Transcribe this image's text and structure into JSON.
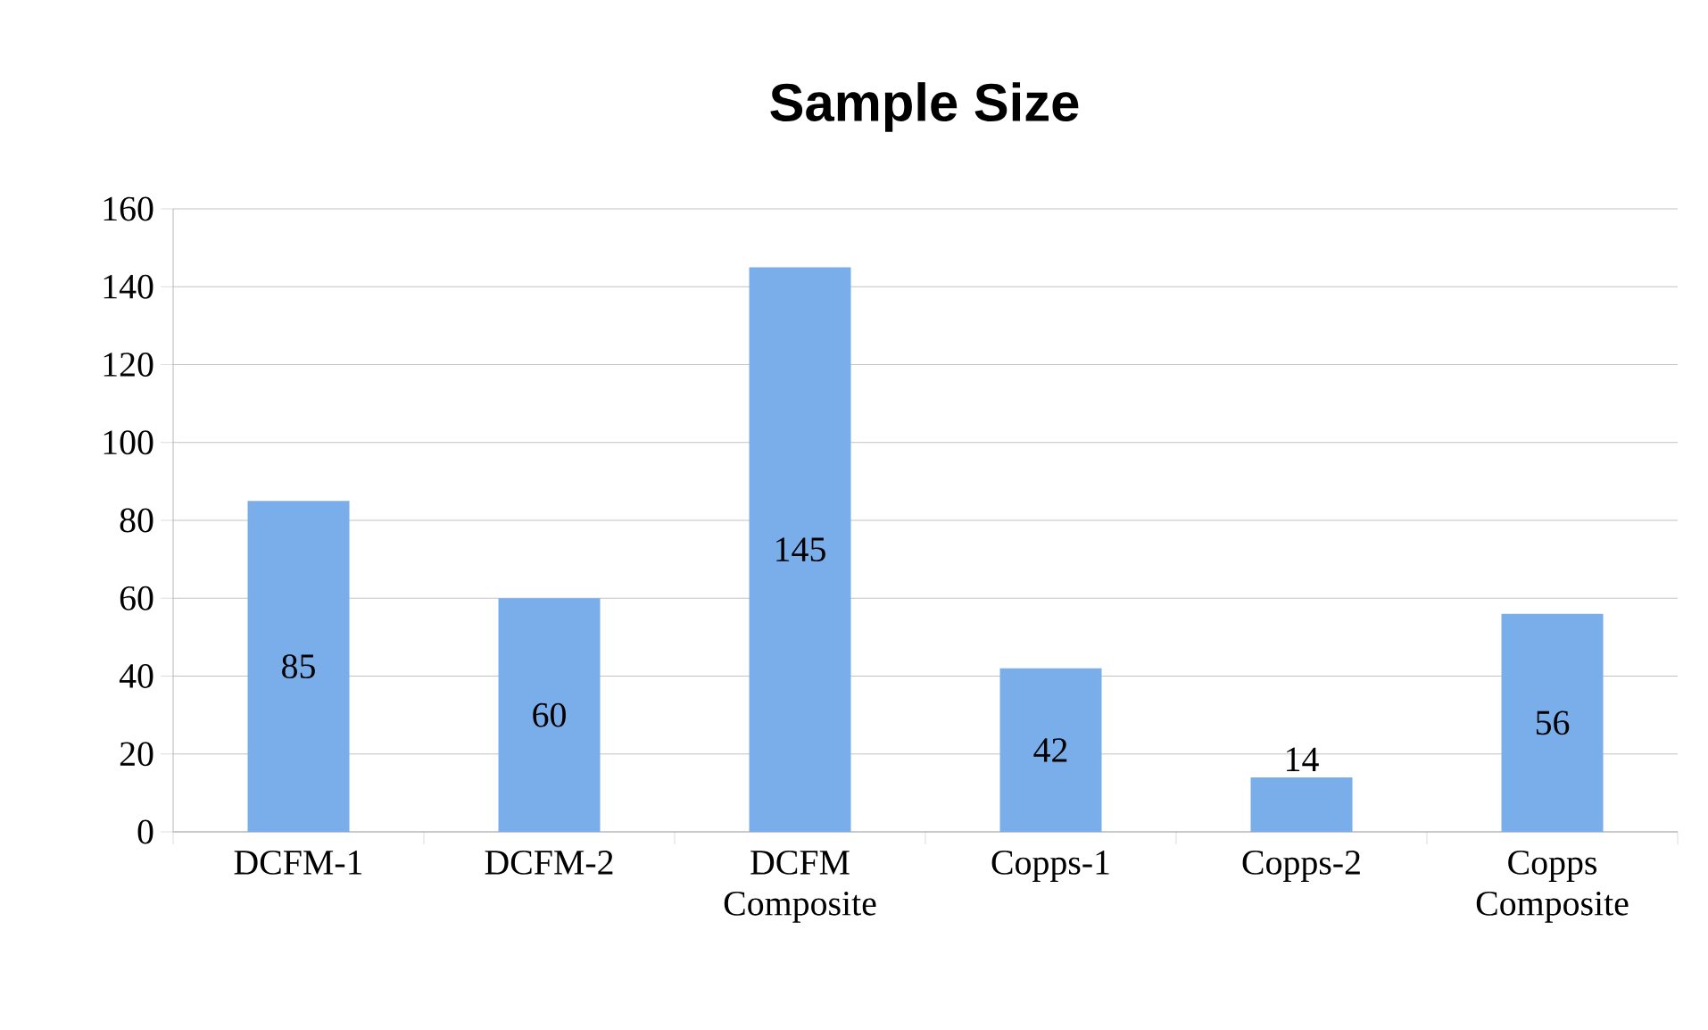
{
  "chart_data": {
    "type": "bar",
    "title": "Sample Size",
    "categories": [
      "DCFM-1",
      "DCFM-2",
      "DCFM Composite",
      "Copps-1",
      "Copps-2",
      "Copps Composite"
    ],
    "values": [
      85,
      60,
      145,
      42,
      14,
      56
    ],
    "color": "#7aaeea",
    "ylim": [
      0,
      160
    ],
    "yticks": [
      0,
      20,
      40,
      60,
      80,
      100,
      120,
      140,
      160
    ],
    "grid": "y",
    "data_labels": true
  }
}
